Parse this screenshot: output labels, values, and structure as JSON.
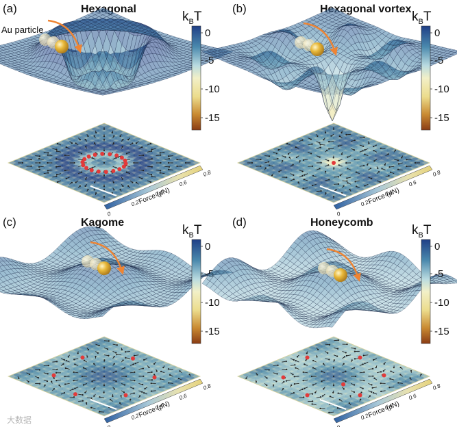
{
  "colors": {
    "colormap": [
      "#8a3c14",
      "#c98a32",
      "#ecdc8c",
      "#f2f0c8",
      "#b9dbe0",
      "#4a89ad",
      "#1f3f86"
    ],
    "arrow": "#222222",
    "trap_dot": "#e23a3a",
    "au_particle": "#d8a82a",
    "path_arrow": "#ee8433"
  },
  "panels": [
    {
      "id": "a",
      "label": "(a)",
      "title": "Hexagonal",
      "annotation": "Au particle",
      "colorbar": {
        "label_main": "k",
        "label_sub": "B",
        "label_tail": "T",
        "ticks": [
          "0",
          "-5",
          "-10",
          "-15"
        ]
      },
      "force_axis": {
        "ticks": [
          "0",
          "0.2",
          "0.4",
          "0.6",
          "0.8"
        ],
        "label": "Force (pN)"
      }
    },
    {
      "id": "b",
      "label": "(b)",
      "title": "Hexagonal vortex",
      "colorbar": {
        "label_main": "k",
        "label_sub": "B",
        "label_tail": "T",
        "ticks": [
          "0",
          "-5",
          "-10",
          "-15"
        ]
      },
      "force_axis": {
        "ticks": [
          "0",
          "0.2",
          "0.4",
          "0.6",
          "0.8"
        ],
        "label": "Force (pN)"
      }
    },
    {
      "id": "c",
      "label": "(c)",
      "title": "Kagome",
      "colorbar": {
        "label_main": "k",
        "label_sub": "B",
        "label_tail": "T",
        "ticks": [
          "0",
          "-5",
          "-10",
          "-15"
        ]
      },
      "force_axis": {
        "ticks": [
          "0",
          "0.2",
          "0.4",
          "0.6",
          "0.8"
        ],
        "label": "Force (pN)"
      }
    },
    {
      "id": "d",
      "label": "(d)",
      "title": "Honeycomb",
      "colorbar": {
        "label_main": "k",
        "label_sub": "B",
        "label_tail": "T",
        "ticks": [
          "0",
          "-5",
          "-10",
          "-15"
        ]
      },
      "force_axis": {
        "ticks": [
          "0",
          "0.2",
          "0.4",
          "0.6",
          "0.8"
        ],
        "label": "Force (pN)"
      }
    }
  ],
  "watermark": "大数据"
}
